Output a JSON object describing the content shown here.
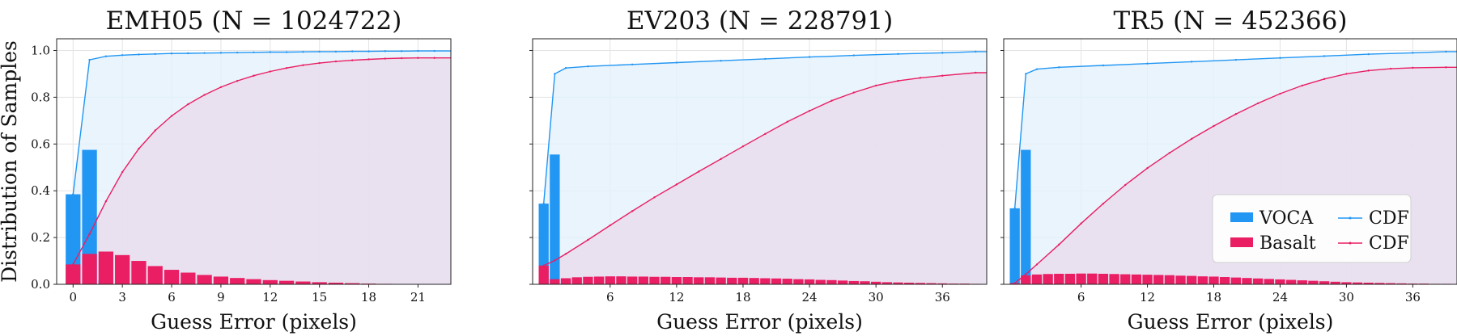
{
  "ylabel": "Distribution of Samples",
  "legend": {
    "entries": [
      {
        "label": "VOCA",
        "kind": "bar",
        "color": "#2196f3"
      },
      {
        "label": "Basalt",
        "kind": "bar",
        "color": "#e91e63"
      },
      {
        "label": "CDF",
        "kind": "line",
        "color": "#2196f3"
      },
      {
        "label": "CDF",
        "kind": "line",
        "color": "#e91e63"
      }
    ],
    "placement": "lower-right of third panel"
  },
  "colors": {
    "voca": "#2196f3",
    "basalt": "#e91e63",
    "voca_fill": "#e3f1fb",
    "basalt_fill": "#eadcec"
  },
  "chart_data": [
    {
      "type": "bar",
      "title": "EMH05 (N = 1024722)",
      "xlabel": "Guess Error (pixels)",
      "ylabel": "Distribution of Samples",
      "xlim": [
        -1,
        23
      ],
      "ylim": [
        0,
        1.05
      ],
      "xticks": [
        0,
        3,
        6,
        9,
        12,
        15,
        18,
        21
      ],
      "yticks": [
        0.0,
        0.2,
        0.4,
        0.6,
        0.8,
        1.0
      ],
      "grid": true,
      "series": [
        {
          "name": "VOCA",
          "type": "bar",
          "x": [
            0,
            1,
            2
          ],
          "values": [
            0.385,
            0.575,
            0.02
          ]
        },
        {
          "name": "Basalt",
          "type": "bar",
          "x": [
            0,
            1,
            2,
            3,
            4,
            5,
            6,
            7,
            8,
            9,
            10,
            11,
            12,
            13,
            14,
            15,
            16,
            17,
            18,
            19,
            20,
            21,
            22
          ],
          "values": [
            0.085,
            0.13,
            0.14,
            0.125,
            0.1,
            0.078,
            0.062,
            0.05,
            0.04,
            0.033,
            0.027,
            0.022,
            0.018,
            0.015,
            0.012,
            0.009,
            0.007,
            0.005,
            0.003,
            0.002,
            0.001,
            0.001,
            0.0
          ]
        },
        {
          "name": "CDF",
          "type": "line",
          "of": "VOCA",
          "x": [
            0,
            1,
            2,
            3,
            4,
            5,
            6,
            7,
            8,
            9,
            10,
            11,
            12,
            13,
            14,
            15,
            16,
            17,
            18,
            19,
            20,
            21,
            22
          ],
          "values": [
            0.385,
            0.96,
            0.975,
            0.98,
            0.983,
            0.985,
            0.987,
            0.988,
            0.989,
            0.99,
            0.991,
            0.992,
            0.993,
            0.993,
            0.994,
            0.995,
            0.995,
            0.996,
            0.996,
            0.997,
            0.997,
            0.998,
            0.998
          ]
        },
        {
          "name": "CDF",
          "type": "line",
          "of": "Basalt",
          "x": [
            0,
            1,
            2,
            3,
            4,
            5,
            6,
            7,
            8,
            9,
            10,
            11,
            12,
            13,
            14,
            15,
            16,
            17,
            18,
            19,
            20,
            21,
            22
          ],
          "values": [
            0.085,
            0.215,
            0.355,
            0.48,
            0.58,
            0.658,
            0.72,
            0.77,
            0.81,
            0.843,
            0.87,
            0.892,
            0.91,
            0.925,
            0.937,
            0.946,
            0.953,
            0.958,
            0.962,
            0.965,
            0.967,
            0.968,
            0.968
          ]
        }
      ]
    },
    {
      "type": "bar",
      "title": "EV203 (N = 228791)",
      "xlabel": "Guess Error (pixels)",
      "ylabel": "",
      "xlim": [
        -1,
        40
      ],
      "ylim": [
        0,
        1.05
      ],
      "xticks": [
        6,
        12,
        18,
        24,
        30,
        36
      ],
      "yticks": [
        0.0,
        0.2,
        0.4,
        0.6,
        0.8,
        1.0
      ],
      "grid": true,
      "series": [
        {
          "name": "VOCA",
          "type": "bar",
          "x": [
            0,
            1,
            2
          ],
          "values": [
            0.345,
            0.555,
            0.02
          ]
        },
        {
          "name": "Basalt",
          "type": "bar",
          "x": [
            0,
            1,
            2,
            3,
            4,
            5,
            6,
            7,
            8,
            9,
            10,
            11,
            12,
            13,
            14,
            15,
            16,
            17,
            18,
            19,
            20,
            21,
            22,
            23,
            24,
            25,
            26,
            27,
            28,
            29,
            30,
            31,
            32,
            33,
            34,
            35,
            36,
            37,
            38,
            39
          ],
          "values": [
            0.08,
            0.022,
            0.026,
            0.03,
            0.032,
            0.033,
            0.034,
            0.034,
            0.033,
            0.033,
            0.032,
            0.032,
            0.031,
            0.031,
            0.03,
            0.03,
            0.029,
            0.028,
            0.028,
            0.027,
            0.026,
            0.025,
            0.024,
            0.022,
            0.021,
            0.019,
            0.018,
            0.016,
            0.014,
            0.013,
            0.011,
            0.009,
            0.008,
            0.007,
            0.006,
            0.005,
            0.004,
            0.003,
            0.003,
            0.002
          ]
        },
        {
          "name": "CDF",
          "type": "line",
          "of": "VOCA",
          "x": [
            0,
            1,
            2,
            4,
            8,
            12,
            16,
            20,
            24,
            28,
            32,
            36,
            39
          ],
          "values": [
            0.345,
            0.9,
            0.925,
            0.932,
            0.94,
            0.948,
            0.956,
            0.964,
            0.972,
            0.979,
            0.985,
            0.99,
            0.995
          ]
        },
        {
          "name": "CDF",
          "type": "line",
          "of": "Basalt",
          "x": [
            0,
            1,
            2,
            4,
            6,
            8,
            10,
            12,
            14,
            16,
            18,
            20,
            22,
            24,
            26,
            28,
            30,
            32,
            34,
            36,
            39
          ],
          "values": [
            0.08,
            0.102,
            0.13,
            0.19,
            0.252,
            0.313,
            0.372,
            0.427,
            0.482,
            0.536,
            0.59,
            0.643,
            0.695,
            0.742,
            0.785,
            0.82,
            0.85,
            0.87,
            0.883,
            0.892,
            0.905
          ]
        }
      ]
    },
    {
      "type": "bar",
      "title": "TR5 (N = 452366)",
      "xlabel": "Guess Error (pixels)",
      "ylabel": "",
      "xlim": [
        -1,
        40
      ],
      "ylim": [
        0,
        1.05
      ],
      "xticks": [
        6,
        12,
        18,
        24,
        30,
        36
      ],
      "yticks": [
        0.0,
        0.2,
        0.4,
        0.6,
        0.8,
        1.0
      ],
      "grid": true,
      "series": [
        {
          "name": "VOCA",
          "type": "bar",
          "x": [
            0,
            1,
            2
          ],
          "values": [
            0.325,
            0.575,
            0.025
          ]
        },
        {
          "name": "Basalt",
          "type": "bar",
          "x": [
            0,
            1,
            2,
            3,
            4,
            5,
            6,
            7,
            8,
            9,
            10,
            11,
            12,
            13,
            14,
            15,
            16,
            17,
            18,
            19,
            20,
            21,
            22,
            23,
            24,
            25,
            26,
            27,
            28,
            29,
            30,
            31,
            32,
            33,
            34,
            35,
            36,
            37,
            38,
            39
          ],
          "values": [
            0.005,
            0.038,
            0.042,
            0.044,
            0.045,
            0.045,
            0.046,
            0.046,
            0.045,
            0.044,
            0.043,
            0.042,
            0.041,
            0.04,
            0.039,
            0.037,
            0.036,
            0.034,
            0.033,
            0.031,
            0.029,
            0.027,
            0.025,
            0.023,
            0.021,
            0.019,
            0.017,
            0.015,
            0.013,
            0.011,
            0.009,
            0.008,
            0.007,
            0.006,
            0.005,
            0.004,
            0.003,
            0.003,
            0.002,
            0.002
          ]
        },
        {
          "name": "CDF",
          "type": "line",
          "of": "VOCA",
          "x": [
            0,
            1,
            2,
            4,
            8,
            12,
            16,
            20,
            24,
            28,
            32,
            36,
            39
          ],
          "values": [
            0.325,
            0.9,
            0.92,
            0.928,
            0.936,
            0.944,
            0.952,
            0.96,
            0.968,
            0.976,
            0.984,
            0.99,
            0.995
          ]
        },
        {
          "name": "CDF",
          "type": "line",
          "of": "Basalt",
          "x": [
            0,
            1,
            2,
            4,
            6,
            8,
            10,
            12,
            14,
            16,
            18,
            20,
            22,
            24,
            26,
            28,
            30,
            32,
            34,
            36,
            39
          ],
          "values": [
            0.005,
            0.043,
            0.085,
            0.17,
            0.26,
            0.345,
            0.425,
            0.497,
            0.562,
            0.622,
            0.677,
            0.728,
            0.774,
            0.815,
            0.85,
            0.878,
            0.9,
            0.914,
            0.922,
            0.926,
            0.928
          ]
        }
      ]
    }
  ]
}
